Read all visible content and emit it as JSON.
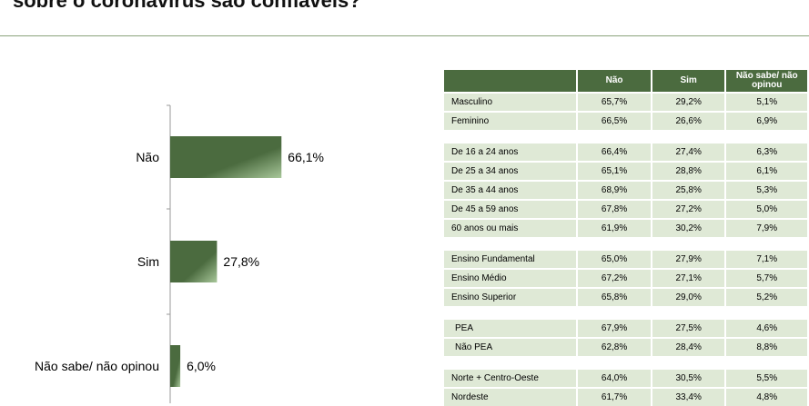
{
  "page": {
    "title": "sobre o coronavírus são confiáveis?"
  },
  "chart_data": {
    "type": "bar",
    "orientation": "horizontal",
    "categories": [
      "Não",
      "Sim",
      "Não sabe/ não opinou"
    ],
    "values": [
      66.1,
      27.8,
      6.0
    ],
    "value_labels": [
      "66,1%",
      "27,8%",
      "6,0%"
    ],
    "xlim": [
      0,
      100
    ],
    "bar_color": "#4b6b3f"
  },
  "table": {
    "headers": [
      "Não",
      "Sim",
      "Não sabe/ não opinou"
    ],
    "groups": [
      [
        {
          "label": "Masculino",
          "values": [
            "65,7%",
            "29,2%",
            "5,1%"
          ]
        },
        {
          "label": "Feminino",
          "values": [
            "66,5%",
            "26,6%",
            "6,9%"
          ]
        }
      ],
      [
        {
          "label": "De 16 a 24 anos",
          "values": [
            "66,4%",
            "27,4%",
            "6,3%"
          ]
        },
        {
          "label": "De 25 a 34 anos",
          "values": [
            "65,1%",
            "28,8%",
            "6,1%"
          ]
        },
        {
          "label": "De 35 a 44 anos",
          "values": [
            "68,9%",
            "25,8%",
            "5,3%"
          ]
        },
        {
          "label": "De 45 a 59 anos",
          "values": [
            "67,8%",
            "27,2%",
            "5,0%"
          ]
        },
        {
          "label": "60 anos ou mais",
          "values": [
            "61,9%",
            "30,2%",
            "7,9%"
          ]
        }
      ],
      [
        {
          "label": "Ensino Fundamental",
          "values": [
            "65,0%",
            "27,9%",
            "7,1%"
          ]
        },
        {
          "label": "Ensino Médio",
          "values": [
            "67,2%",
            "27,1%",
            "5,7%"
          ]
        },
        {
          "label": "Ensino Superior",
          "values": [
            "65,8%",
            "29,0%",
            "5,2%"
          ]
        }
      ],
      [
        {
          "label": "PEA",
          "values": [
            "67,9%",
            "27,5%",
            "4,6%"
          ],
          "indent": true
        },
        {
          "label": "Não PEA",
          "values": [
            "62,8%",
            "28,4%",
            "8,8%"
          ],
          "indent": true
        }
      ],
      [
        {
          "label": "Norte + Centro-Oeste",
          "values": [
            "64,0%",
            "30,5%",
            "5,5%"
          ]
        },
        {
          "label": "Nordeste",
          "values": [
            "61,7%",
            "33,4%",
            "4,8%"
          ]
        }
      ]
    ]
  }
}
